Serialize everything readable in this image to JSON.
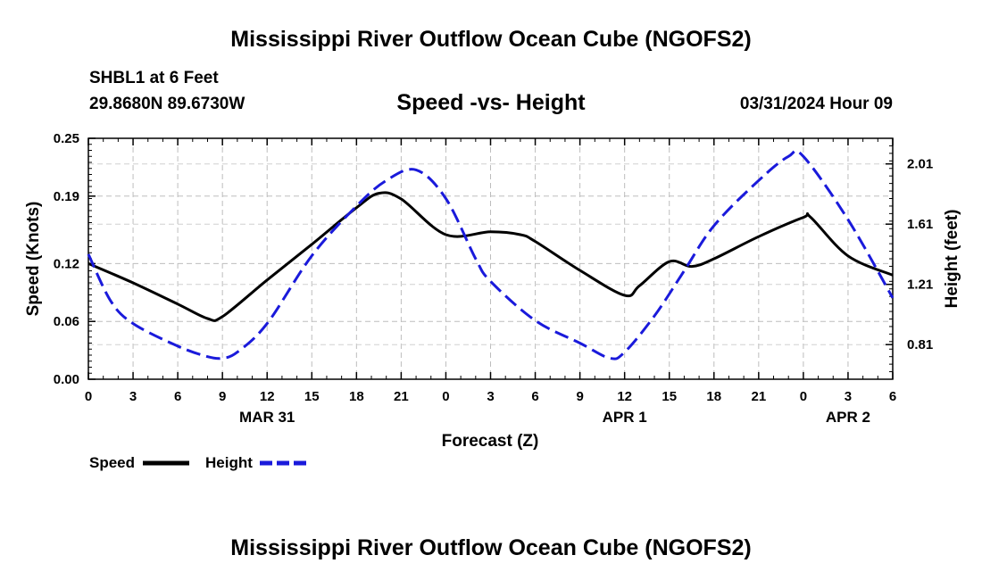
{
  "page": {
    "title": "Mississippi River Outflow Ocean Cube (NGOFS2)",
    "footer_title": "Mississippi River Outflow Ocean Cube (NGOFS2)",
    "station": "SHBL1 at 6 Feet",
    "coords": "29.8680N  89.6730W",
    "datetime": "03/31/2024 Hour 09"
  },
  "chart_data": {
    "type": "line",
    "title": "Speed -vs- Height",
    "xlabel": "Forecast (Z)",
    "ylabel": "Speed (Knots)",
    "ylabel_right": "Height (feet)",
    "x_range": [
      0,
      54
    ],
    "x_tick_values": [
      0,
      3,
      6,
      9,
      12,
      15,
      18,
      21,
      24,
      27,
      30,
      33,
      36,
      39,
      42,
      45,
      48,
      51,
      54
    ],
    "x_tick_labels": [
      "0",
      "3",
      "6",
      "9",
      "12",
      "15",
      "18",
      "21",
      "0",
      "3",
      "6",
      "9",
      "12",
      "15",
      "18",
      "21",
      "0",
      "3",
      "6"
    ],
    "date_labels": [
      {
        "label": "MAR 31",
        "x": 12
      },
      {
        "label": "APR 1",
        "x": 36
      },
      {
        "label": "APR 2",
        "x": 51
      }
    ],
    "ylim": [
      0,
      0.25
    ],
    "y_ticks": [
      0.0,
      0.06,
      0.12,
      0.19,
      0.25
    ],
    "y_tick_labels": [
      "0.00",
      "0.06",
      "0.12",
      "0.19",
      "0.25"
    ],
    "ylim_right": [
      0.58,
      2.18
    ],
    "y_ticks_right": [
      0.81,
      1.21,
      1.61,
      2.01
    ],
    "y_tick_labels_right": [
      "0.81",
      "1.21",
      "1.61",
      "2.01"
    ],
    "grid": true,
    "legend_position": "bottom-left",
    "series": [
      {
        "name": "Speed",
        "axis": "left",
        "color": "#000000",
        "style": "solid",
        "x": [
          0,
          3,
          6,
          8,
          9,
          12,
          15,
          18,
          19.5,
          21,
          24,
          27,
          29,
          30,
          33,
          36,
          37,
          39,
          40.5,
          42,
          45,
          48,
          48.5,
          51,
          54
        ],
        "values": [
          0.12,
          0.1,
          0.078,
          0.063,
          0.065,
          0.103,
          0.14,
          0.178,
          0.193,
          0.187,
          0.15,
          0.153,
          0.15,
          0.143,
          0.113,
          0.087,
          0.097,
          0.122,
          0.117,
          0.125,
          0.148,
          0.168,
          0.168,
          0.128,
          0.108
        ]
      },
      {
        "name": "Height",
        "axis": "right",
        "color": "#1a1adb",
        "style": "dashed",
        "x": [
          0,
          1.5,
          3,
          6,
          8,
          9,
          10,
          12,
          15,
          18,
          20,
          22,
          24,
          26,
          27,
          30,
          33,
          35,
          36,
          38,
          40,
          42,
          45,
          47,
          48,
          51,
          54
        ],
        "values": [
          1.41,
          1.1,
          0.95,
          0.8,
          0.73,
          0.72,
          0.76,
          0.95,
          1.4,
          1.73,
          1.9,
          1.97,
          1.78,
          1.38,
          1.23,
          0.97,
          0.82,
          0.72,
          0.76,
          1.0,
          1.3,
          1.6,
          1.9,
          2.06,
          2.06,
          1.64,
          1.12
        ]
      }
    ]
  }
}
